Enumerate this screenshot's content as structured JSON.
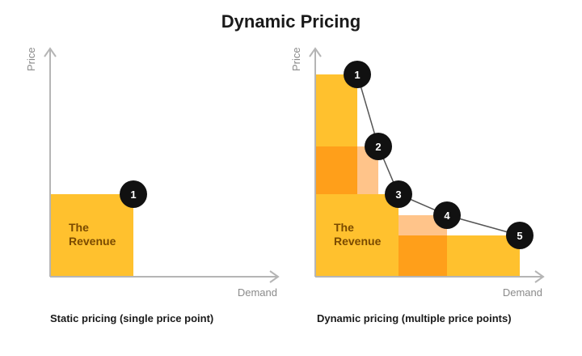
{
  "title": "Dynamic Pricing",
  "static_panel": {
    "y_axis_label": "Price",
    "x_axis_label": "Demand",
    "revenue_label_line1": "The",
    "revenue_label_line2": "Revenue",
    "marker": "1",
    "caption": "Static pricing (single price point)"
  },
  "dynamic_panel": {
    "y_axis_label": "Price",
    "x_axis_label": "Demand",
    "revenue_label_line1": "The",
    "revenue_label_line2": "Revenue",
    "markers": [
      "1",
      "2",
      "3",
      "4",
      "5"
    ],
    "caption": "Dynamic pricing (multiple price points)"
  },
  "colors": {
    "revenue_fill": "#FFC12E",
    "overlap_fill": "#FF9F1A",
    "light_fill": "#FFC48A",
    "axis": "#b5b5b5",
    "marker": "#111111",
    "curve": "#555555"
  }
}
